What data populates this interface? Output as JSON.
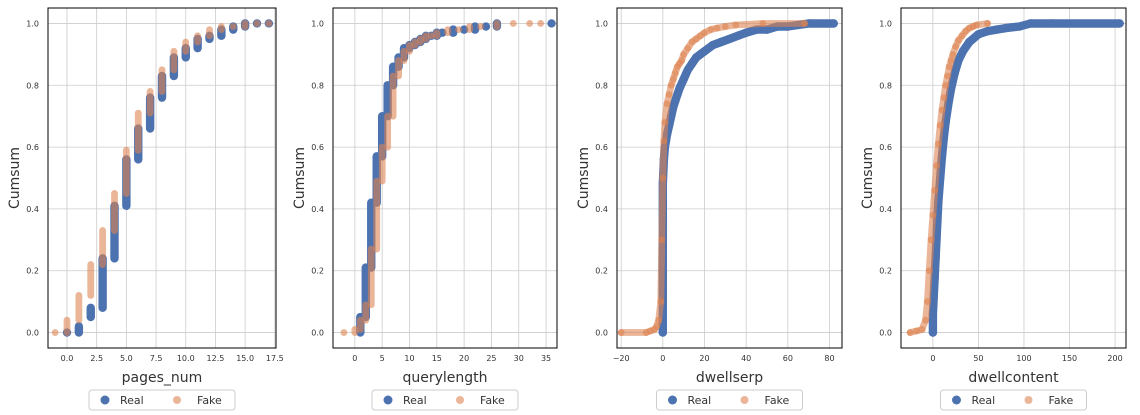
{
  "colors": {
    "real": "#4c72b0",
    "fake": "#dd8452",
    "grid": "#cccccc",
    "axis": "#000000"
  },
  "legend": {
    "real_label": "Real",
    "fake_label": "Fake"
  },
  "chart_data": [
    {
      "type": "scatter",
      "title": "",
      "xlabel": "pages_num",
      "ylabel": "Cumsum",
      "xlim": [
        -1.6,
        17.6
      ],
      "ylim": [
        -0.05,
        1.05
      ],
      "xticks": [
        0.0,
        2.5,
        5.0,
        7.5,
        10.0,
        12.5,
        15.0,
        17.5
      ],
      "xticklabels": [
        "0.0",
        "2.5",
        "5.0",
        "7.5",
        "10.0",
        "12.5",
        "15.0",
        "17.5"
      ],
      "yticks": [
        0.0,
        0.2,
        0.4,
        0.6,
        0.8,
        1.0
      ],
      "yticklabels": [
        "0.0",
        "0.2",
        "0.4",
        "0.6",
        "0.8",
        "1.0"
      ],
      "grid": true,
      "legend_placement": "bottom-center",
      "series": [
        {
          "name": "Real",
          "x": [
            0,
            1,
            2,
            3,
            4,
            5,
            6,
            7,
            8,
            9,
            10,
            11,
            12,
            13,
            14,
            15,
            16,
            17
          ],
          "y_low": [
            0.0,
            0.0,
            0.05,
            0.08,
            0.24,
            0.41,
            0.56,
            0.66,
            0.76,
            0.83,
            0.89,
            0.92,
            0.95,
            0.96,
            0.98,
            0.99,
            1.0,
            1.0
          ],
          "y_high": [
            0.0,
            0.02,
            0.08,
            0.24,
            0.41,
            0.56,
            0.66,
            0.76,
            0.83,
            0.89,
            0.92,
            0.95,
            0.96,
            0.98,
            0.99,
            1.0,
            1.0,
            1.0
          ]
        },
        {
          "name": "Fake",
          "x": [
            -1,
            0,
            1,
            2,
            3,
            4,
            5,
            6,
            7,
            8,
            9,
            10,
            11,
            12,
            13,
            14,
            15,
            16,
            17
          ],
          "y_low": [
            0.0,
            0.0,
            0.04,
            0.12,
            0.22,
            0.33,
            0.45,
            0.59,
            0.71,
            0.78,
            0.85,
            0.91,
            0.94,
            0.96,
            0.98,
            0.99,
            0.99,
            1.0,
            1.0
          ],
          "y_high": [
            0.0,
            0.04,
            0.12,
            0.22,
            0.33,
            0.45,
            0.59,
            0.71,
            0.78,
            0.85,
            0.91,
            0.94,
            0.96,
            0.98,
            0.99,
            0.99,
            1.0,
            1.0,
            1.0
          ]
        }
      ]
    },
    {
      "type": "scatter",
      "title": "",
      "xlabel": "querylength",
      "ylabel": "Cumsum",
      "xlim": [
        -4,
        37
      ],
      "ylim": [
        -0.05,
        1.05
      ],
      "xticks": [
        0,
        5,
        10,
        15,
        20,
        25,
        30,
        35
      ],
      "xticklabels": [
        "0",
        "5",
        "10",
        "15",
        "20",
        "25",
        "30",
        "35"
      ],
      "yticks": [
        0.0,
        0.2,
        0.4,
        0.6,
        0.8,
        1.0
      ],
      "yticklabels": [
        "0.0",
        "0.2",
        "0.4",
        "0.6",
        "0.8",
        "1.0"
      ],
      "grid": true,
      "legend_placement": "bottom-center",
      "series": [
        {
          "name": "Real",
          "x": [
            1,
            2,
            3,
            4,
            5,
            6,
            7,
            8,
            9,
            10,
            11,
            12,
            13,
            14,
            15,
            16,
            18,
            20,
            22,
            24,
            26,
            36
          ],
          "y_low": [
            0.0,
            0.05,
            0.21,
            0.42,
            0.57,
            0.7,
            0.8,
            0.86,
            0.89,
            0.92,
            0.93,
            0.94,
            0.95,
            0.96,
            0.96,
            0.97,
            0.97,
            0.98,
            0.98,
            0.99,
            0.99,
            1.0
          ],
          "y_high": [
            0.05,
            0.21,
            0.42,
            0.57,
            0.7,
            0.8,
            0.86,
            0.89,
            0.92,
            0.93,
            0.94,
            0.95,
            0.96,
            0.96,
            0.97,
            0.97,
            0.98,
            0.98,
            0.99,
            0.99,
            1.0,
            1.0
          ]
        },
        {
          "name": "Fake",
          "x": [
            -2,
            0,
            1,
            2,
            3,
            4,
            5,
            6,
            7,
            8,
            9,
            10,
            11,
            12,
            13,
            14,
            15,
            17,
            19,
            21,
            23,
            26,
            29,
            32,
            34
          ],
          "y_low": [
            0.0,
            0.0,
            0.01,
            0.04,
            0.09,
            0.27,
            0.49,
            0.6,
            0.7,
            0.83,
            0.88,
            0.91,
            0.93,
            0.94,
            0.95,
            0.96,
            0.96,
            0.97,
            0.98,
            0.98,
            0.99,
            0.99,
            1.0,
            1.0,
            1.0
          ],
          "y_high": [
            0.0,
            0.01,
            0.04,
            0.09,
            0.27,
            0.49,
            0.6,
            0.7,
            0.83,
            0.88,
            0.91,
            0.93,
            0.94,
            0.95,
            0.96,
            0.96,
            0.97,
            0.98,
            0.98,
            0.99,
            0.99,
            1.0,
            1.0,
            1.0,
            1.0
          ]
        }
      ]
    },
    {
      "type": "scatter",
      "title": "",
      "xlabel": "dwellserp",
      "ylabel": "Cumsum",
      "xlim": [
        -22,
        86
      ],
      "ylim": [
        -0.05,
        1.05
      ],
      "xticks": [
        -20,
        0,
        20,
        40,
        60,
        80
      ],
      "xticklabels": [
        "−20",
        "0",
        "20",
        "40",
        "60",
        "80"
      ],
      "yticks": [
        0.0,
        0.2,
        0.4,
        0.6,
        0.8,
        1.0
      ],
      "yticklabels": [
        "0.0",
        "0.2",
        "0.4",
        "0.6",
        "0.8",
        "1.0"
      ],
      "grid": true,
      "legend_placement": "bottom-center",
      "series": [
        {
          "name": "Real",
          "x": [
            0,
            0,
            0,
            0.5,
            1,
            2,
            3,
            4,
            5,
            6,
            7,
            8,
            10,
            12,
            14,
            16,
            18,
            20,
            24,
            28,
            32,
            36,
            40,
            45,
            50,
            55,
            60,
            70,
            82
          ],
          "y": [
            0.0,
            0.2,
            0.48,
            0.56,
            0.6,
            0.64,
            0.67,
            0.7,
            0.73,
            0.75,
            0.77,
            0.79,
            0.82,
            0.85,
            0.87,
            0.89,
            0.9,
            0.91,
            0.93,
            0.94,
            0.95,
            0.96,
            0.97,
            0.98,
            0.98,
            0.99,
            0.99,
            1.0,
            1.0
          ]
        },
        {
          "name": "Fake",
          "x": [
            -20,
            -8,
            -6,
            -4,
            -3,
            -2,
            -1,
            -0.5,
            0,
            0.5,
            1,
            2,
            3,
            4,
            5,
            6,
            7,
            8,
            9,
            10,
            12,
            14,
            16,
            18,
            20,
            23,
            26,
            30,
            35,
            48,
            68
          ],
          "y": [
            0.0,
            0.0,
            0.005,
            0.01,
            0.02,
            0.04,
            0.1,
            0.3,
            0.5,
            0.62,
            0.68,
            0.74,
            0.77,
            0.8,
            0.82,
            0.84,
            0.86,
            0.87,
            0.88,
            0.9,
            0.92,
            0.94,
            0.95,
            0.96,
            0.97,
            0.98,
            0.985,
            0.99,
            0.995,
            1.0,
            1.0
          ]
        }
      ]
    },
    {
      "type": "scatter",
      "title": "",
      "xlabel": "dwellcontent",
      "ylabel": "Cumsum",
      "xlim": [
        -35,
        212
      ],
      "ylim": [
        -0.05,
        1.05
      ],
      "xticks": [
        0,
        50,
        100,
        150,
        200
      ],
      "xticklabels": [
        "0",
        "50",
        "100",
        "150",
        "200"
      ],
      "yticks": [
        0.0,
        0.2,
        0.4,
        0.6,
        0.8,
        1.0
      ],
      "yticklabels": [
        "0.0",
        "0.2",
        "0.4",
        "0.6",
        "0.8",
        "1.0"
      ],
      "grid": true,
      "legend_placement": "bottom-center",
      "series": [
        {
          "name": "Real",
          "x": [
            0,
            0,
            1,
            2,
            3,
            4,
            5,
            6,
            8,
            10,
            12,
            14,
            17,
            20,
            24,
            28,
            33,
            40,
            50,
            60,
            70,
            80,
            95,
            107,
            131,
            205
          ],
          "y": [
            0.0,
            0.06,
            0.12,
            0.18,
            0.24,
            0.3,
            0.36,
            0.42,
            0.5,
            0.57,
            0.63,
            0.68,
            0.74,
            0.79,
            0.84,
            0.88,
            0.91,
            0.94,
            0.965,
            0.975,
            0.98,
            0.985,
            0.99,
            1.0,
            1.0,
            1.0
          ]
        },
        {
          "name": "Fake",
          "x": [
            -25,
            -18,
            -12,
            -8,
            -6,
            -4,
            -2,
            0,
            2,
            4,
            6,
            8,
            10,
            12,
            14,
            16,
            18,
            20,
            22,
            25,
            28,
            32,
            36,
            40,
            44,
            48,
            60
          ],
          "y": [
            0.0,
            0.005,
            0.01,
            0.04,
            0.1,
            0.2,
            0.3,
            0.38,
            0.46,
            0.54,
            0.61,
            0.67,
            0.72,
            0.76,
            0.8,
            0.83,
            0.86,
            0.88,
            0.9,
            0.925,
            0.945,
            0.96,
            0.975,
            0.985,
            0.99,
            0.995,
            1.0
          ]
        }
      ]
    }
  ]
}
